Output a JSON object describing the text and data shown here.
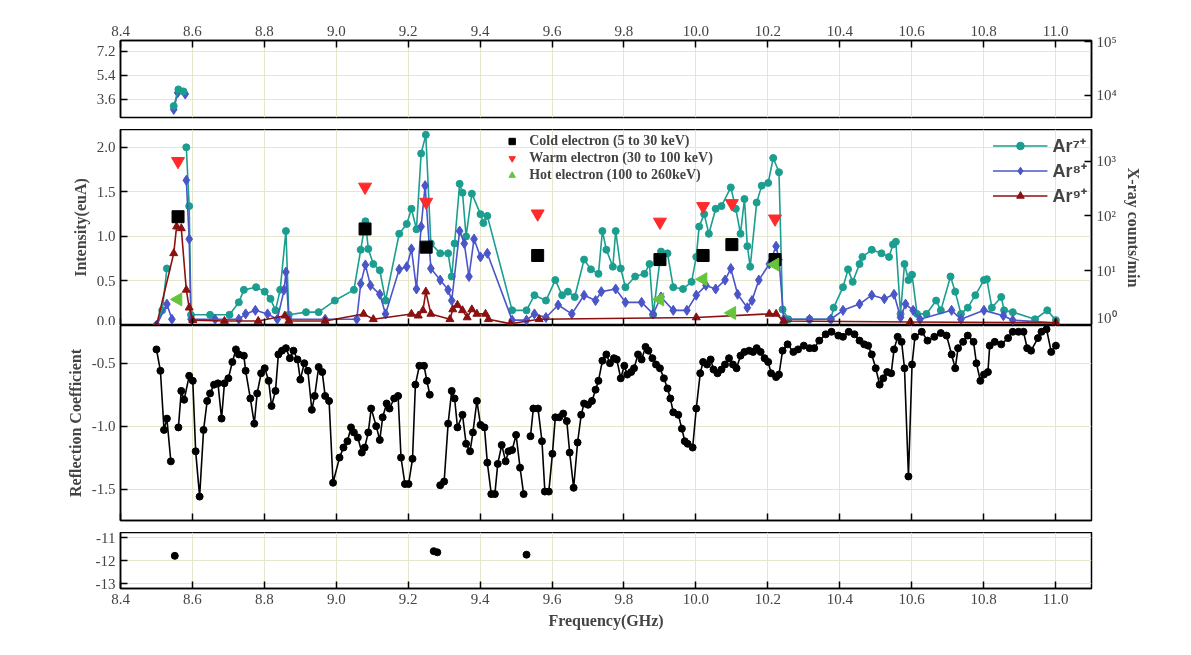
{
  "chart_data": [
    {
      "type": "line",
      "xlim": [
        8.4,
        11.1
      ],
      "xticks": [
        8.4,
        8.6,
        8.8,
        {
          "value": 9.0,
          "label": "9.0"
        },
        9.2,
        9.4,
        9.6,
        9.8,
        {
          "value": 10.0,
          "label": "10.0"
        },
        10.2,
        10.4,
        10.6,
        10.8,
        {
          "value": 11.0,
          "label": "11.0"
        }
      ],
      "ylim": [
        2.25,
        8.0
      ],
      "yticks": [
        3.6,
        5.4,
        7.2
      ],
      "y2lim": [
        3800,
        105000
      ],
      "y2ticks": [
        {
          "value": 10000,
          "label": "10⁴"
        },
        {
          "value": 100000,
          "label": "10⁵"
        }
      ],
      "log": "y2",
      "grid": true,
      "series": [
        {
          "color": "#4a55c8",
          "marker": "diamond",
          "x": [
            8.548,
            8.559,
            8.58
          ],
          "values": [
            2.85,
            4.1,
            4.0
          ]
        },
        {
          "color": "#1b9e8f",
          "marker": "circle",
          "x": [
            8.548,
            8.561,
            8.575
          ],
          "values": [
            3.1,
            4.35,
            4.2
          ]
        }
      ]
    },
    {
      "type": "line",
      "xlim": [
        8.4,
        11.1
      ],
      "xticks": [
        8.4,
        8.6,
        8.8,
        9.0,
        9.2,
        9.4,
        9.6,
        9.8,
        10.0,
        10.2,
        10.4,
        10.6,
        10.8,
        11.0
      ],
      "tick_labels": "y",
      "ylim": [
        0,
        2.2
      ],
      "yticks": [
        {
          "value": 0,
          "label": "0.0"
        },
        0.5,
        {
          "value": 1,
          "label": "1.0"
        },
        1.5,
        {
          "value": 2,
          "label": "2.0"
        }
      ],
      "ylabel": "Intensity(euA)",
      "y2label": "X-ray counts/min",
      "y2lim": [
        1,
        3800
      ],
      "y2ticks": [
        {
          "value": 1,
          "label": "10⁰"
        },
        {
          "value": 10,
          "label": "10¹"
        },
        {
          "value": 100,
          "label": "10²"
        },
        {
          "value": 1000,
          "label": "10³"
        }
      ],
      "log": "y2",
      "grid": true,
      "legend": "top right",
      "series": [
        {
          "name": "Ar⁷⁺",
          "color": "#1b9e8f",
          "marker": "circle",
          "x": [
            8.5,
            8.516,
            8.529,
            8.548,
            8.561,
            8.575,
            8.583,
            8.591,
            8.596,
            8.649,
            8.703,
            8.729,
            8.743,
            8.777,
            8.801,
            8.817,
            8.831,
            8.844,
            8.86,
            8.868,
            8.916,
            8.951,
            8.996,
            9.049,
            9.068,
            9.081,
            9.089,
            9.103,
            9.121,
            9.137,
            9.175,
            9.196,
            9.209,
            9.223,
            9.236,
            9.249,
            9.263,
            9.289,
            9.311,
            9.321,
            9.329,
            9.343,
            9.351,
            9.361,
            9.377,
            9.401,
            9.409,
            9.42,
            9.489,
            9.529,
            9.551,
            9.583,
            9.609,
            9.628,
            9.644,
            9.663,
            9.689,
            9.708,
            9.729,
            9.74,
            9.751,
            9.769,
            9.777,
            9.791,
            9.804,
            9.831,
            9.857,
            9.871,
            9.881,
            9.903,
            9.921,
            9.937,
            9.964,
            9.988,
            10.001,
            10.009,
            10.023,
            10.036,
            10.055,
            10.071,
            10.097,
            10.111,
            10.124,
            10.135,
            10.143,
            10.151,
            10.169,
            10.183,
            10.201,
            10.215,
            10.231,
            10.241,
            10.257,
            10.316,
            10.375,
            10.383,
            10.409,
            10.423,
            10.436,
            10.455,
            10.463,
            10.489,
            10.516,
            10.537,
            10.548,
            10.556,
            10.569,
            10.58,
            10.591,
            10.601,
            10.615,
            10.641,
            10.668,
            10.681,
            10.708,
            10.721,
            10.737,
            10.756,
            10.777,
            10.801,
            10.809,
            10.823,
            10.849,
            10.857,
            10.881,
            10.943,
            10.977,
            11.001
          ],
          "values": [
            0.0,
            0.17,
            0.64,
            null,
            null,
            null,
            2.0,
            1.34,
            0.12,
            0.12,
            0.12,
            0.26,
            0.4,
            0.43,
            0.38,
            0.3,
            0.17,
            0.4,
            1.06,
            0.12,
            0.15,
            0.15,
            0.28,
            0.4,
            0.85,
            1.17,
            0.86,
            0.69,
            0.62,
            0.28,
            1.03,
            1.14,
            1.31,
            1.08,
            1.93,
            2.14,
            0.92,
            0.81,
            0.81,
            0.55,
            0.92,
            1.59,
            1.49,
            1.0,
            1.48,
            1.25,
            1.15,
            1.23,
            0.17,
            0.17,
            0.34,
            0.28,
            0.51,
            0.34,
            0.38,
            0.32,
            0.74,
            0.63,
            0.58,
            1.06,
            0.85,
            0.66,
            1.06,
            0.64,
            0.43,
            0.55,
            0.58,
            0.69,
            0.12,
            0.83,
            0.81,
            0.43,
            0.41,
            0.49,
            0.77,
            1.11,
            1.25,
            1.03,
            1.31,
            1.34,
            1.55,
            1.31,
            1.03,
            1.42,
            0.89,
            0.66,
            1.38,
            1.57,
            1.6,
            1.88,
            1.72,
            0.18,
            0.07,
            0.07,
            0.07,
            0.2,
            0.43,
            0.63,
            0.49,
            0.69,
            0.77,
            0.85,
            0.81,
            0.77,
            0.91,
            0.94,
            0.13,
            0.69,
            0.51,
            0.57,
            0.13,
            0.13,
            0.28,
            0.17,
            0.55,
            0.38,
            0.13,
            0.2,
            0.34,
            0.51,
            0.52,
            0.2,
            0.32,
            0.17,
            0.15,
            0.07,
            0.17,
            0.06
          ]
        },
        {
          "name": "Ar⁸⁺",
          "color": "#4a55c8",
          "marker": "diamond",
          "x": [
            8.5,
            8.529,
            8.543,
            8.548,
            8.559,
            8.58,
            8.583,
            8.591,
            8.596,
            8.663,
            8.729,
            8.748,
            8.775,
            8.809,
            8.836,
            8.855,
            8.86,
            8.868,
            8.969,
            9.057,
            9.068,
            9.081,
            9.095,
            9.121,
            9.137,
            9.175,
            9.196,
            9.209,
            9.223,
            9.236,
            9.247,
            9.263,
            9.289,
            9.311,
            9.321,
            9.343,
            9.356,
            9.369,
            9.383,
            9.401,
            9.42,
            9.489,
            9.529,
            9.551,
            9.583,
            9.617,
            9.655,
            9.689,
            9.721,
            9.737,
            9.777,
            9.804,
            9.849,
            9.881,
            9.903,
            9.937,
            9.975,
            10.001,
            10.028,
            10.055,
            10.081,
            10.097,
            10.116,
            10.143,
            10.156,
            10.175,
            10.204,
            10.223,
            10.231,
            10.244,
            10.316,
            10.375,
            10.409,
            10.455,
            10.489,
            10.524,
            10.551,
            10.569,
            10.583,
            10.604,
            10.623,
            10.711,
            10.737,
            10.801,
            10.855,
            10.881,
            11.001
          ],
          "values": [
            0.0,
            0.24,
            0.07,
            null,
            null,
            null,
            1.63,
            0.97,
            0.07,
            0.07,
            0.07,
            0.13,
            0.17,
            0.13,
            0.07,
            0.4,
            0.6,
            0.07,
            0.07,
            0.07,
            0.47,
            0.68,
            0.45,
            0.35,
            0.13,
            0.63,
            0.66,
            0.86,
            0.41,
            1.11,
            1.57,
            0.64,
            0.51,
            0.4,
            0.28,
            1.06,
            0.92,
            0.55,
            0.97,
            0.77,
            0.81,
            0.06,
            0.06,
            0.13,
            0.09,
            0.23,
            0.13,
            0.34,
            0.28,
            0.38,
            0.41,
            0.26,
            0.26,
            0.13,
            0.32,
            0.17,
            0.17,
            0.34,
            0.45,
            0.41,
            0.51,
            0.64,
            0.35,
            0.2,
            0.28,
            0.51,
            0.69,
            0.89,
            0.74,
            0.07,
            0.07,
            0.07,
            0.17,
            0.24,
            0.34,
            0.3,
            0.35,
            0.09,
            0.24,
            0.17,
            0.07,
            0.17,
            0.07,
            0.17,
            0.11,
            0.06,
            0.03
          ]
        },
        {
          "name": "Ar⁹⁺",
          "color": "#8b1010",
          "marker": "triangle",
          "x": [
            8.5,
            8.548,
            8.556,
            8.569,
            8.583,
            8.591,
            8.601,
            8.689,
            8.783,
            8.857,
            8.868,
            8.969,
            9.076,
            9.103,
            9.209,
            9.228,
            9.241,
            9.249,
            9.263,
            9.316,
            9.324,
            9.337,
            9.351,
            9.364,
            9.377,
            9.391,
            9.415,
            9.423,
            9.484,
            9.564,
            10.001,
            10.204,
            10.223,
            10.244,
            10.596,
            11.001
          ],
          "values": [
            0.0,
            0.81,
            1.11,
            1.09,
            0.4,
            0.2,
            0.06,
            0.05,
            0.05,
            0.11,
            0.05,
            0.05,
            0.13,
            0.07,
            0.13,
            0.11,
            0.17,
            0.38,
            0.13,
            0.07,
            0.18,
            0.23,
            0.17,
            0.09,
            0.18,
            0.13,
            0.13,
            0.07,
            0.02,
            0.07,
            0.09,
            0.13,
            0.13,
            0.05,
            0.04,
            0.03
          ]
        },
        {
          "name": "Cold electron (5 to 30 keV)",
          "type": "scatter",
          "axis": "y2",
          "color": "#000000",
          "marker": "square",
          "x": [
            8.56,
            9.08,
            9.25,
            9.56,
            9.9,
            10.02,
            10.1,
            10.22
          ],
          "values": [
            97,
            58,
            27,
            19,
            16,
            19,
            30,
            16
          ]
        },
        {
          "name": "Warm electron (30 to 100 keV)",
          "type": "scatter",
          "axis": "y2",
          "color": "#ff2a2a",
          "marker": "triangle_down",
          "x": [
            8.56,
            9.08,
            9.25,
            9.56,
            9.9,
            10.02,
            10.1,
            10.22
          ],
          "values": [
            1000,
            340,
            180,
            110,
            78,
            150,
            170,
            89
          ]
        },
        {
          "name": "Hot electron (100 to 260keV)",
          "type": "scatter",
          "axis": "y2",
          "color": "#66c43c",
          "marker": "triangle_left",
          "x": [
            8.56,
            9.9,
            10.02,
            10.1,
            10.22
          ],
          "values": [
            3.0,
            3.0,
            7.0,
            1.7,
            13
          ]
        }
      ]
    },
    {
      "type": "line",
      "xlim": [
        8.4,
        11.1
      ],
      "xticks": [
        8.4,
        8.6,
        8.8,
        9.0,
        9.2,
        9.4,
        9.6,
        9.8,
        10.0,
        10.2,
        10.4,
        10.6,
        10.8,
        11.0
      ],
      "tick_labels": "y",
      "ylim": [
        -1.75,
        -0.2
      ],
      "yticks": [
        -0.5,
        {
          "value": -1.0,
          "label": "-1.0"
        },
        -1.5
      ],
      "ylabel": "Reflection Coefficient",
      "grid": true,
      "series": [
        {
          "color": "#000000",
          "marker": "circle",
          "x": [
            8.5,
            8.511,
            8.521,
            8.529,
            8.54,
            8.551,
            8.561,
            8.569,
            8.577,
            8.591,
            8.601,
            8.609,
            8.62,
            8.631,
            8.641,
            8.649,
            8.66,
            8.671,
            8.681,
            8.689,
            8.7,
            8.711,
            8.721,
            8.729,
            8.743,
            8.748,
            8.761,
            8.772,
            8.78,
            8.791,
            8.801,
            8.812,
            8.82,
            8.831,
            8.839,
            8.849,
            8.86,
            8.871,
            8.881,
            8.892,
            8.9,
            8.911,
            8.921,
            8.932,
            8.94,
            8.951,
            8.961,
            8.969,
            8.98,
            8.991,
            9.009,
            9.02,
            9.031,
            9.041,
            9.049,
            9.06,
            9.071,
            9.079,
            9.089,
            9.097,
            9.111,
            9.121,
            9.129,
            9.14,
            9.148,
            9.161,
            9.172,
            9.18,
            9.191,
            9.201,
            9.212,
            9.22,
            9.231,
            9.244,
            9.252,
            9.26,
            9.271,
            9.281,
            9.289,
            9.3,
            9.311,
            9.321,
            9.329,
            9.337,
            9.351,
            9.361,
            9.372,
            9.38,
            9.391,
            9.401,
            9.412,
            9.42,
            9.431,
            9.441,
            9.449,
            9.46,
            9.471,
            9.479,
            9.489,
            9.5,
            9.511,
            9.521,
            9.529,
            9.54,
            9.548,
            9.561,
            9.572,
            9.58,
            9.591,
            9.601,
            9.609,
            9.62,
            9.631,
            9.641,
            9.649,
            9.66,
            9.671,
            9.681,
            9.689,
            9.7,
            9.711,
            9.721,
            9.729,
            9.74,
            9.751,
            9.761,
            9.772,
            9.78,
            9.791,
            9.801,
            9.809,
            9.82,
            9.828,
            9.839,
            9.849,
            9.86,
            9.868,
            9.879,
            9.889,
            9.9,
            9.911,
            9.921,
            9.929,
            9.937,
            9.951,
            9.961,
            9.969,
            9.977,
            9.991,
            10.001,
            10.012,
            10.02,
            10.031,
            10.041,
            10.049,
            10.06,
            10.071,
            10.081,
            10.092,
            10.103,
            10.113,
            10.124,
            10.135,
            10.148,
            10.159,
            10.169,
            10.18,
            10.191,
            10.201,
            10.209,
            10.223,
            10.231,
            10.241,
            10.255,
            10.271,
            10.284,
            10.3,
            10.316,
            10.329,
            10.343,
            10.361,
            10.377,
            10.396,
            10.409,
            10.425,
            10.441,
            10.455,
            10.468,
            10.479,
            10.489,
            10.5,
            10.511,
            10.521,
            10.532,
            10.543,
            10.551,
            10.561,
            10.572,
            10.58,
            10.591,
            10.601,
            10.609,
            10.628,
            10.644,
            10.663,
            10.681,
            10.697,
            10.711,
            10.721,
            10.729,
            10.743,
            10.756,
            10.772,
            10.78,
            10.791,
            10.801,
            10.812,
            10.817,
            10.831,
            10.849,
            10.868,
            10.881,
            10.897,
            10.911,
            10.921,
            10.932,
            10.951,
            10.961,
            10.975,
            10.988,
            11.001
          ],
          "values": [
            -0.39,
            -0.56,
            -1.03,
            -0.94,
            -1.28,
            null,
            -1.01,
            -0.72,
            -0.79,
            -0.6,
            -0.64,
            -1.2,
            -1.56,
            -1.03,
            -0.8,
            -0.74,
            -0.67,
            -0.66,
            -0.94,
            -0.66,
            -0.62,
            -0.49,
            -0.39,
            -0.43,
            -0.44,
            -0.56,
            -0.78,
            -0.98,
            -0.74,
            -0.58,
            -0.54,
            -0.64,
            -0.84,
            -0.72,
            -0.43,
            -0.4,
            -0.38,
            -0.46,
            -0.4,
            -0.47,
            -0.63,
            -0.5,
            -0.56,
            -0.87,
            -0.76,
            -0.53,
            -0.57,
            -0.76,
            -0.8,
            -1.45,
            -1.25,
            -1.17,
            -1.12,
            -1.01,
            -1.05,
            -1.09,
            -1.21,
            -1.17,
            -1.05,
            -0.86,
            -1.0,
            -1.11,
            -0.93,
            -0.82,
            -0.86,
            -0.78,
            -0.76,
            -1.25,
            -1.46,
            -1.46,
            -1.26,
            -0.67,
            -0.52,
            -0.52,
            -0.64,
            -0.75,
            null,
            null,
            -1.47,
            -1.44,
            -0.98,
            -0.72,
            -0.78,
            -1.01,
            -0.91,
            -1.14,
            -1.2,
            -1.05,
            -0.8,
            -0.99,
            -1.01,
            -1.29,
            -1.54,
            -1.54,
            -1.3,
            -1.15,
            -1.28,
            -1.2,
            -1.19,
            -1.07,
            -1.33,
            -1.54,
            null,
            -1.08,
            -0.86,
            -0.86,
            -1.12,
            -1.52,
            -1.52,
            -1.22,
            -0.93,
            -0.93,
            -0.9,
            -0.96,
            -1.21,
            -1.49,
            -1.13,
            -0.91,
            -0.82,
            -0.83,
            -0.8,
            -0.71,
            -0.64,
            -0.48,
            -0.43,
            -0.5,
            -0.46,
            -0.47,
            -0.62,
            -0.52,
            -0.59,
            -0.57,
            -0.54,
            -0.43,
            -0.47,
            -0.37,
            -0.4,
            -0.46,
            -0.51,
            -0.54,
            -0.62,
            -0.7,
            -0.78,
            -0.89,
            -0.91,
            -1.02,
            -1.12,
            -1.14,
            -1.17,
            -0.86,
            -0.58,
            -0.49,
            -0.51,
            -0.47,
            -0.55,
            -0.58,
            -0.55,
            -0.51,
            -0.46,
            -0.51,
            -0.54,
            -0.44,
            -0.41,
            -0.4,
            -0.41,
            -0.38,
            -0.41,
            -0.46,
            -0.49,
            -0.58,
            -0.61,
            -0.59,
            -0.4,
            -0.35,
            -0.41,
            -0.39,
            -0.36,
            -0.38,
            -0.38,
            -0.32,
            -0.27,
            -0.25,
            -0.28,
            -0.29,
            -0.25,
            -0.27,
            -0.32,
            -0.35,
            -0.36,
            -0.43,
            -0.54,
            -0.67,
            -0.62,
            -0.57,
            -0.58,
            -0.39,
            -0.29,
            -0.33,
            -0.54,
            -1.4,
            -0.51,
            -0.29,
            -0.25,
            -0.32,
            -0.29,
            -0.26,
            -0.28,
            -0.43,
            -0.54,
            -0.38,
            -0.33,
            -0.28,
            -0.33,
            -0.5,
            -0.64,
            -0.59,
            -0.57,
            -0.36,
            -0.33,
            -0.35,
            -0.3,
            -0.25,
            -0.25,
            -0.25,
            -0.38,
            -0.4,
            -0.3,
            -0.25,
            -0.23,
            -0.41,
            -0.36
          ]
        }
      ]
    },
    {
      "type": "line",
      "xlim": [
        8.4,
        11.1
      ],
      "xticks": [
        8.4,
        8.6,
        8.8,
        {
          "value": 9.0,
          "label": "9.0"
        },
        9.2,
        9.4,
        9.6,
        9.8,
        {
          "value": 10.0,
          "label": "10.0"
        },
        10.2,
        10.4,
        10.6,
        10.8,
        {
          "value": 11.0,
          "label": "11.0"
        }
      ],
      "ylim": [
        -13.2,
        -10.8
      ],
      "yticks": [
        -11,
        -12,
        -13
      ],
      "xlabel": "Frequency(GHz)",
      "grid": true,
      "series": [
        {
          "type": "scatter",
          "color": "#000000",
          "marker": "circle",
          "x": [
            8.551,
            9.271,
            9.281,
            9.529
          ],
          "values": [
            -11.8,
            -11.6,
            -11.65,
            -11.75
          ]
        }
      ]
    }
  ]
}
